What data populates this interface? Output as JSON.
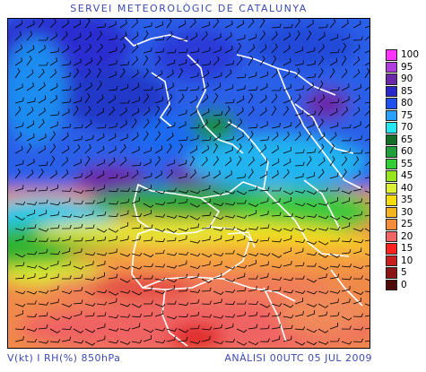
{
  "header": {
    "title": "SERVEI METEOROLÒGIC DE CATALUNYA"
  },
  "footer": {
    "variables": "V(kt) I RH(%) 850hPa",
    "analysis": "ANÀLISI 00UTC 05 JUL 2009"
  },
  "legend": {
    "items": [
      {
        "label": "100",
        "color": "#ff33ff"
      },
      {
        "label": "95",
        "color": "#b03ce0"
      },
      {
        "label": "90",
        "color": "#6a28a8"
      },
      {
        "label": "85",
        "color": "#2828c8"
      },
      {
        "label": "80",
        "color": "#1e50f0"
      },
      {
        "label": "75",
        "color": "#28a0ff"
      },
      {
        "label": "70",
        "color": "#23e6f0"
      },
      {
        "label": "65",
        "color": "#146e28"
      },
      {
        "label": "60",
        "color": "#1ea03c"
      },
      {
        "label": "55",
        "color": "#32cd32"
      },
      {
        "label": "45",
        "color": "#96e61e"
      },
      {
        "label": "40",
        "color": "#dcf032"
      },
      {
        "label": "35",
        "color": "#f5dc0a"
      },
      {
        "label": "30",
        "color": "#f5b41e"
      },
      {
        "label": "25",
        "color": "#f58c3c"
      },
      {
        "label": "20",
        "color": "#f06464"
      },
      {
        "label": "15",
        "color": "#ff2020"
      },
      {
        "label": "10",
        "color": "#c81e1e"
      },
      {
        "label": "5",
        "color": "#8c1414"
      },
      {
        "label": "0",
        "color": "#500a0a"
      }
    ]
  }
}
